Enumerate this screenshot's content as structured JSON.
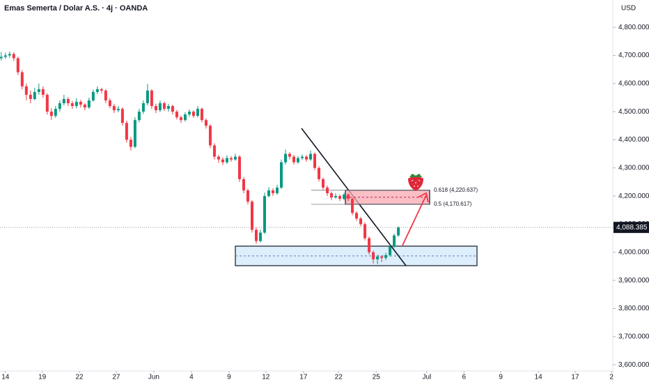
{
  "chart_data": {
    "type": "candlestick",
    "title": "Emas Semerta / Dolar A.S. · 4j · OANDA",
    "currency": "USD",
    "up_color": "#089981",
    "down_color": "#f23645",
    "candles": [
      [
        4690,
        4712,
        4682,
        4695
      ],
      [
        4695,
        4710,
        4688,
        4700
      ],
      [
        4700,
        4714,
        4692,
        4705
      ],
      [
        4705,
        4712,
        4680,
        4690
      ],
      [
        4690,
        4695,
        4630,
        4640
      ],
      [
        4640,
        4648,
        4580,
        4590
      ],
      [
        4590,
        4600,
        4540,
        4560
      ],
      [
        4560,
        4575,
        4530,
        4545
      ],
      [
        4545,
        4585,
        4540,
        4570
      ],
      [
        4570,
        4600,
        4560,
        4580
      ],
      [
        4580,
        4590,
        4550,
        4560
      ],
      [
        4560,
        4565,
        4490,
        4500
      ],
      [
        4500,
        4512,
        4470,
        4485
      ],
      [
        4485,
        4520,
        4478,
        4510
      ],
      [
        4510,
        4540,
        4500,
        4530
      ],
      [
        4530,
        4560,
        4522,
        4545
      ],
      [
        4545,
        4552,
        4520,
        4530
      ],
      [
        4530,
        4538,
        4510,
        4520
      ],
      [
        4520,
        4548,
        4512,
        4535
      ],
      [
        4535,
        4542,
        4515,
        4525
      ],
      [
        4525,
        4530,
        4505,
        4515
      ],
      [
        4515,
        4550,
        4510,
        4540
      ],
      [
        4540,
        4578,
        4535,
        4570
      ],
      [
        4570,
        4590,
        4562,
        4580
      ],
      [
        4580,
        4585,
        4565,
        4575
      ],
      [
        4575,
        4580,
        4530,
        4540
      ],
      [
        4540,
        4548,
        4512,
        4520
      ],
      [
        4520,
        4528,
        4495,
        4505
      ],
      [
        4505,
        4520,
        4498,
        4510
      ],
      [
        4510,
        4515,
        4450,
        4460
      ],
      [
        4460,
        4468,
        4390,
        4400
      ],
      [
        4400,
        4410,
        4362,
        4375
      ],
      [
        4375,
        4480,
        4370,
        4470
      ],
      [
        4470,
        4510,
        4462,
        4500
      ],
      [
        4500,
        4540,
        4492,
        4530
      ],
      [
        4530,
        4598,
        4522,
        4575
      ],
      [
        4575,
        4580,
        4510,
        4520
      ],
      [
        4520,
        4528,
        4495,
        4505
      ],
      [
        4505,
        4540,
        4498,
        4530
      ],
      [
        4530,
        4536,
        4502,
        4510
      ],
      [
        4510,
        4528,
        4500,
        4520
      ],
      [
        4520,
        4525,
        4490,
        4500
      ],
      [
        4500,
        4506,
        4472,
        4480
      ],
      [
        4480,
        4486,
        4460,
        4470
      ],
      [
        4470,
        4498,
        4465,
        4490
      ],
      [
        4490,
        4508,
        4482,
        4500
      ],
      [
        4500,
        4505,
        4478,
        4485
      ],
      [
        4485,
        4520,
        4480,
        4510
      ],
      [
        4510,
        4515,
        4462,
        4470
      ],
      [
        4470,
        4476,
        4440,
        4450
      ],
      [
        4450,
        4455,
        4370,
        4380
      ],
      [
        4380,
        4388,
        4330,
        4340
      ],
      [
        4340,
        4346,
        4318,
        4330
      ],
      [
        4330,
        4338,
        4310,
        4320
      ],
      [
        4320,
        4345,
        4314,
        4335
      ],
      [
        4335,
        4342,
        4322,
        4330
      ],
      [
        4330,
        4350,
        4325,
        4340
      ],
      [
        4340,
        4345,
        4250,
        4260
      ],
      [
        4260,
        4268,
        4210,
        4220
      ],
      [
        4220,
        4226,
        4170,
        4180
      ],
      [
        4180,
        4186,
        4070,
        4080
      ],
      [
        4080,
        4088,
        4030,
        4040
      ],
      [
        4040,
        4080,
        4035,
        4070
      ],
      [
        4070,
        4212,
        4065,
        4200
      ],
      [
        4200,
        4232,
        4195,
        4220
      ],
      [
        4220,
        4228,
        4200,
        4210
      ],
      [
        4210,
        4240,
        4204,
        4230
      ],
      [
        4230,
        4330,
        4225,
        4320
      ],
      [
        4320,
        4365,
        4312,
        4350
      ],
      [
        4350,
        4356,
        4330,
        4340
      ],
      [
        4340,
        4346,
        4312,
        4320
      ],
      [
        4320,
        4342,
        4315,
        4335
      ],
      [
        4335,
        4348,
        4328,
        4340
      ],
      [
        4340,
        4346,
        4322,
        4330
      ],
      [
        4330,
        4362,
        4325,
        4350
      ],
      [
        4350,
        4355,
        4292,
        4300
      ],
      [
        4300,
        4306,
        4252,
        4260
      ],
      [
        4260,
        4266,
        4222,
        4230
      ],
      [
        4230,
        4238,
        4200,
        4210
      ],
      [
        4210,
        4216,
        4185,
        4195
      ],
      [
        4195,
        4210,
        4190,
        4200
      ],
      [
        4200,
        4206,
        4182,
        4190
      ],
      [
        4190,
        4212,
        4185,
        4205
      ],
      [
        4205,
        4210,
        4182,
        4190
      ],
      [
        4190,
        4195,
        4132,
        4140
      ],
      [
        4140,
        4146,
        4112,
        4120
      ],
      [
        4120,
        4126,
        4092,
        4100
      ],
      [
        4100,
        4106,
        4042,
        4050
      ],
      [
        4050,
        4056,
        3992,
        4000
      ],
      [
        4000,
        4006,
        3960,
        3975
      ],
      [
        3975,
        3992,
        3958,
        3985
      ],
      [
        3985,
        3990,
        3965,
        3980
      ],
      [
        3980,
        3998,
        3972,
        3990
      ],
      [
        3990,
        4028,
        3985,
        4020
      ],
      [
        4020,
        4066,
        4015,
        4060
      ],
      [
        4060,
        4092,
        4055,
        4088
      ]
    ],
    "xlim": [
      -0.3,
      146.3
    ],
    "xticks": [
      {
        "value": 1,
        "label": "14"
      },
      {
        "value": 9.8,
        "label": "19"
      },
      {
        "value": 18.7,
        "label": "22"
      },
      {
        "value": 27.5,
        "label": "27"
      },
      {
        "value": 36.5,
        "label": "Jun"
      },
      {
        "value": 45.5,
        "label": "4"
      },
      {
        "value": 54.5,
        "label": "9"
      },
      {
        "value": 63.3,
        "label": "12"
      },
      {
        "value": 72.3,
        "label": "17"
      },
      {
        "value": 80.7,
        "label": "22"
      },
      {
        "value": 89.7,
        "label": "25"
      },
      {
        "value": 101.8,
        "label": "Jul"
      },
      {
        "value": 110.7,
        "label": "6"
      },
      {
        "value": 119.5,
        "label": "9"
      },
      {
        "value": 128.5,
        "label": "14"
      },
      {
        "value": 137.3,
        "label": "17"
      },
      {
        "value": 146,
        "label": "2"
      }
    ],
    "ylim": [
      3578,
      4897
    ],
    "yticks": [
      {
        "value": 3600,
        "label": "3,600.000"
      },
      {
        "value": 3700,
        "label": "3,700.000"
      },
      {
        "value": 3800,
        "label": "3,800.000"
      },
      {
        "value": 3900,
        "label": "3,900.000"
      },
      {
        "value": 4000,
        "label": "4,000.000"
      },
      {
        "value": 4100,
        "label": "4,100.000"
      },
      {
        "value": 4200,
        "label": "4,200.000"
      },
      {
        "value": 4300,
        "label": "4,300.000"
      },
      {
        "value": 4400,
        "label": "4,400.000"
      },
      {
        "value": 4500,
        "label": "4,500.000"
      },
      {
        "value": 4600,
        "label": "4,600.000"
      },
      {
        "value": 4700,
        "label": "4,700.000"
      },
      {
        "value": 4800,
        "label": "4,800.000"
      }
    ],
    "grid": false,
    "last_price": {
      "value": 4088.385,
      "label": "4,088.385"
    },
    "fib_levels": [
      {
        "value": 4220.637,
        "label": "0.618 (4,220.637)"
      },
      {
        "value": 4170.617,
        "label": "0.5 (4,170.617)"
      }
    ]
  }
}
